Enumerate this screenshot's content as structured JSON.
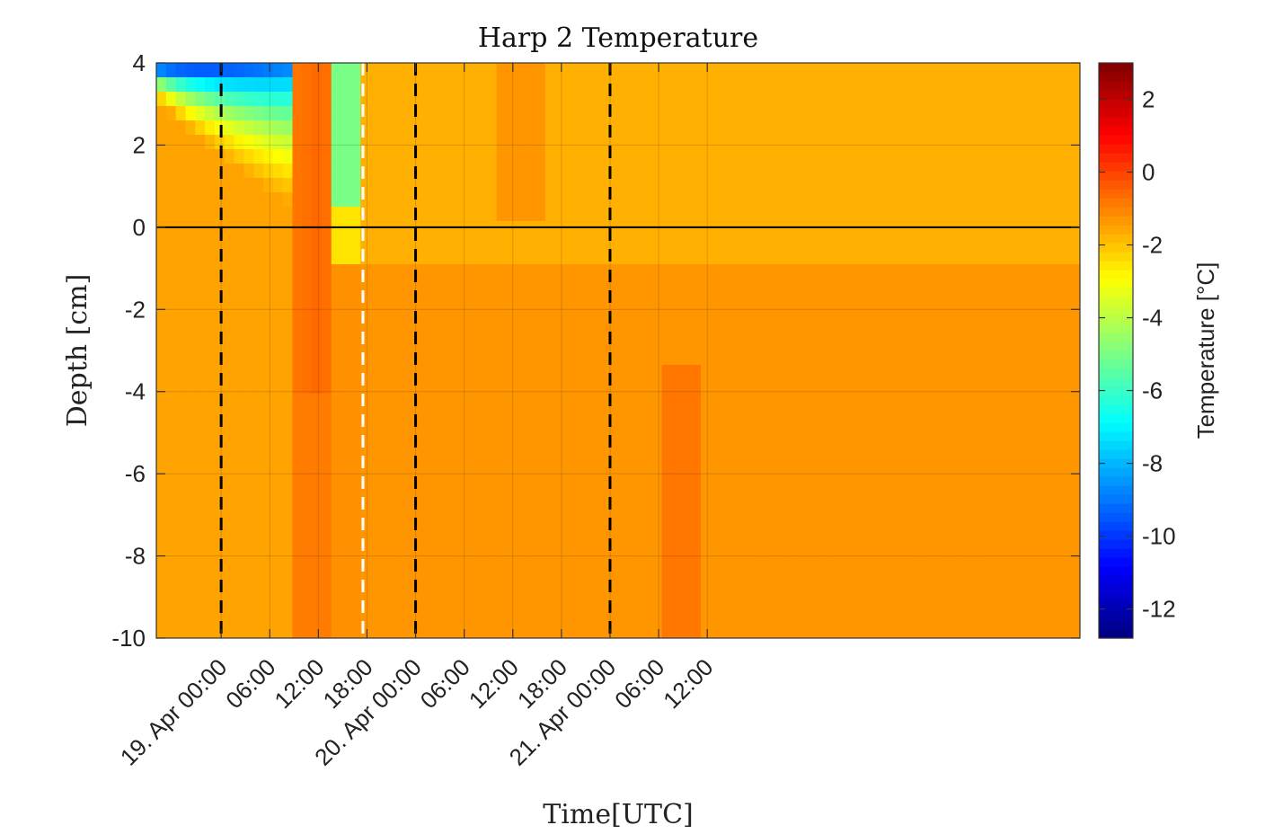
{
  "chart_data": {
    "type": "heatmap",
    "title": "Harp 2 Temperature",
    "xlabel": "Time[UTC]",
    "ylabel": "Depth [cm]",
    "colorbar_label": "Temperature [°C]",
    "colormap": "jet",
    "color_range": [
      -12.8,
      3
    ],
    "ylim": [
      -10,
      4
    ],
    "y_ticks": [
      4,
      2,
      0,
      -2,
      -4,
      -6,
      -8,
      -10
    ],
    "xlim_hours": [
      -8,
      106
    ],
    "x_ticks": [
      {
        "hours": 0,
        "label": "19. Apr 00:00"
      },
      {
        "hours": 6,
        "label": "06:00"
      },
      {
        "hours": 12,
        "label": "12:00"
      },
      {
        "hours": 18,
        "label": "18:00"
      },
      {
        "hours": 24,
        "label": "20. Apr 00:00"
      },
      {
        "hours": 30,
        "label": "06:00"
      },
      {
        "hours": 36,
        "label": "12:00"
      },
      {
        "hours": 42,
        "label": "18:00"
      },
      {
        "hours": 48,
        "label": "21. Apr 00:00"
      },
      {
        "hours": 54,
        "label": "06:00"
      },
      {
        "hours": 60,
        "label": "12:00"
      }
    ],
    "colorbar_ticks": [
      2,
      0,
      -2,
      -4,
      -6,
      -8,
      -10,
      -12
    ],
    "surface_line_depth": 0,
    "black_dashed_lines_hours": [
      0,
      24,
      48
    ],
    "white_dashed_lines_hours": [
      17.5
    ]
  }
}
